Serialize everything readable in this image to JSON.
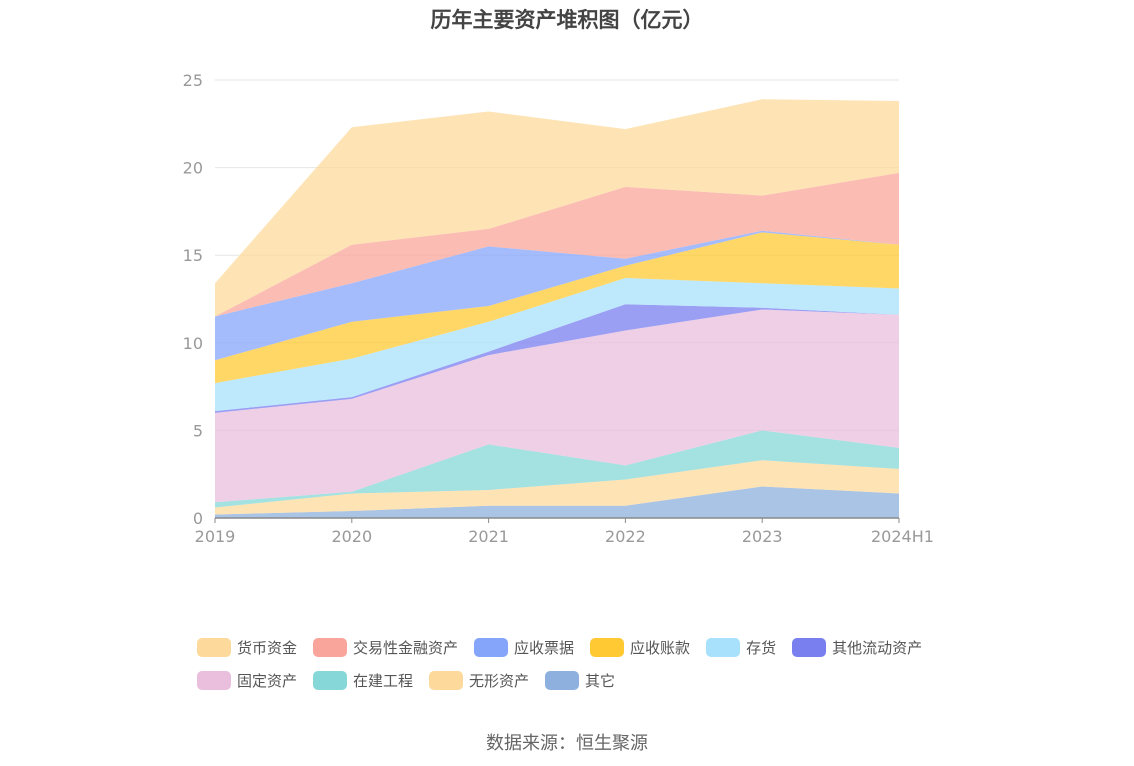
{
  "chart_data": {
    "type": "area",
    "stacked": true,
    "title": "历年主要资产堆积图（亿元）",
    "source": "数据来源：恒生聚源",
    "categories": [
      "2019",
      "2020",
      "2021",
      "2022",
      "2023",
      "2024H1"
    ],
    "ylim": [
      0,
      25
    ],
    "yticks": [
      "0",
      "5",
      "10",
      "15",
      "20",
      "25"
    ],
    "grid": true,
    "legend_position": "bottom",
    "series": [
      {
        "name": "其它",
        "color": "#8eb0de",
        "values": [
          0.2,
          0.4,
          0.7,
          0.7,
          1.8,
          1.4
        ]
      },
      {
        "name": "无形资产",
        "color": "#fdd99b",
        "values": [
          0.4,
          1.0,
          0.9,
          1.5,
          1.5,
          1.4
        ]
      },
      {
        "name": "在建工程",
        "color": "#86d7d7",
        "values": [
          0.3,
          0.1,
          2.6,
          0.8,
          1.7,
          1.2
        ]
      },
      {
        "name": "固定资产",
        "color": "#e9bfdd",
        "values": [
          5.1,
          5.3,
          5.1,
          7.7,
          6.9,
          7.6
        ]
      },
      {
        "name": "其他流动资产",
        "color": "#7a7ff0",
        "values": [
          0.1,
          0.1,
          0.2,
          1.5,
          0.1,
          0.0
        ]
      },
      {
        "name": "存货",
        "color": "#a8e1fb",
        "values": [
          1.6,
          2.2,
          1.7,
          1.5,
          1.4,
          1.5
        ]
      },
      {
        "name": "应收账款",
        "color": "#ffc933",
        "values": [
          1.3,
          2.1,
          0.9,
          0.7,
          2.9,
          2.5
        ]
      },
      {
        "name": "应收票据",
        "color": "#85a5fb",
        "values": [
          2.5,
          2.2,
          3.4,
          0.4,
          0.1,
          0.0
        ]
      },
      {
        "name": "交易性金融资产",
        "color": "#f9a59b",
        "values": [
          0.0,
          2.2,
          1.0,
          4.1,
          2.0,
          4.1
        ]
      },
      {
        "name": "货币资金",
        "color": "#fdd99b",
        "values": [
          1.9,
          6.7,
          6.7,
          3.3,
          5.5,
          4.1
        ]
      }
    ],
    "legend_order": [
      "货币资金",
      "交易性金融资产",
      "应收票据",
      "应收账款",
      "存货",
      "其他流动资产",
      "固定资产",
      "在建工程",
      "无形资产",
      "其它"
    ]
  }
}
